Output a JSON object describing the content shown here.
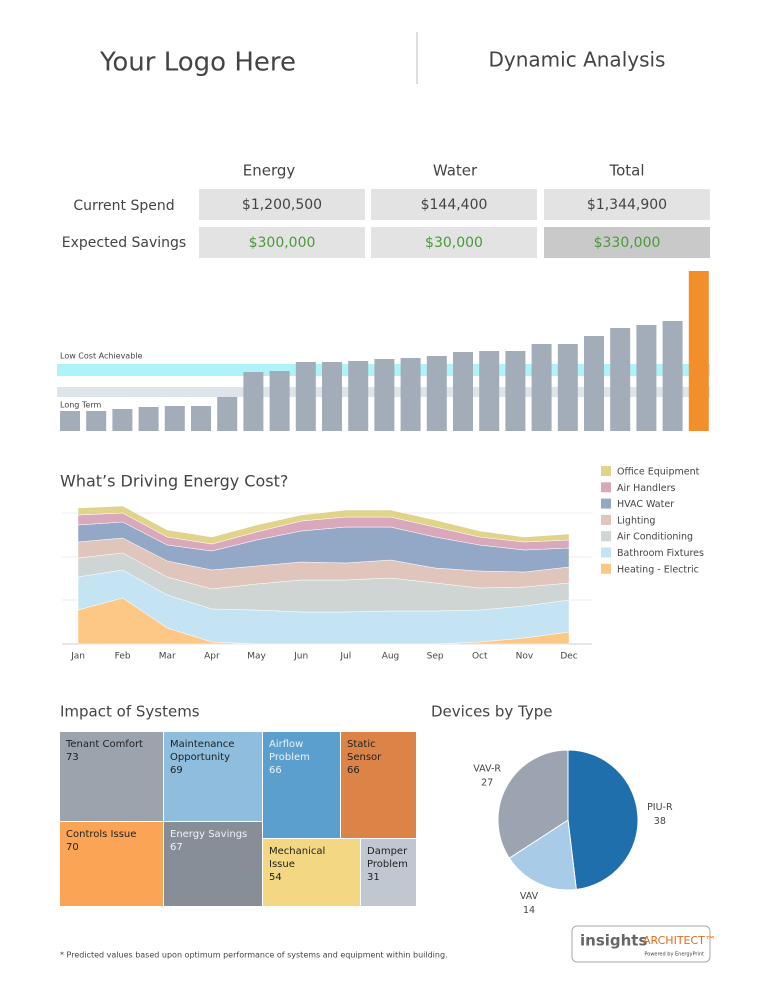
{
  "header": {
    "logo": "Your Logo Here",
    "title": "Dynamic Analysis"
  },
  "summary": {
    "columns": [
      "Energy",
      "Water",
      "Total"
    ],
    "rows": [
      {
        "label": "Current Spend",
        "cells": [
          "$1,200,500",
          "$144,400",
          "$1,344,900"
        ]
      },
      {
        "label": "Expected Savings",
        "cells": [
          "$300,000",
          "$30,000",
          "$330,000"
        ]
      }
    ]
  },
  "chart_data": [
    {
      "type": "bar",
      "values": [
        20,
        20,
        22,
        24,
        25,
        25,
        34,
        59,
        60,
        69,
        69,
        70,
        72,
        73,
        75,
        79,
        80,
        80,
        87,
        87,
        95,
        103,
        106,
        110,
        160
      ],
      "colors": [
        "#a3acb9",
        "#a3acb9",
        "#a3acb9",
        "#a3acb9",
        "#a3acb9",
        "#a3acb9",
        "#a3acb9",
        "#a3acb9",
        "#a3acb9",
        "#a3acb9",
        "#a3acb9",
        "#a3acb9",
        "#a3acb9",
        "#a3acb9",
        "#a3acb9",
        "#a3acb9",
        "#a3acb9",
        "#a3acb9",
        "#a3acb9",
        "#a3acb9",
        "#a3acb9",
        "#a3acb9",
        "#a3acb9",
        "#a3acb9",
        "#f28e2b"
      ],
      "ylim": [
        0,
        160
      ],
      "bands": [
        {
          "label": "Low Cost Achievable",
          "range": [
            55,
            67
          ],
          "color": "#aef3f7"
        },
        {
          "label": "Long Term",
          "range": [
            34,
            44
          ],
          "color": "#dde5ea"
        }
      ]
    },
    {
      "type": "area",
      "title": "What’s Driving Energy Cost?",
      "stacked": true,
      "categories": [
        "Jan",
        "Feb",
        "Mar",
        "Apr",
        "May",
        "Jun",
        "Jul",
        "Aug",
        "Sep",
        "Oct",
        "Nov",
        "Dec"
      ],
      "series": [
        {
          "name": "Office Equipment",
          "color": "#e0d38a",
          "values": [
            7,
            7,
            7,
            7,
            7,
            6,
            7,
            7,
            7,
            6,
            5,
            6
          ]
        },
        {
          "name": "Air Handlers",
          "color": "#d9a9bb",
          "values": [
            10,
            9,
            8,
            7,
            8,
            10,
            10,
            10,
            10,
            8,
            8,
            8
          ]
        },
        {
          "name": "HVAC Water",
          "color": "#93a7c6",
          "values": [
            17,
            16,
            16,
            19,
            26,
            31,
            36,
            33,
            31,
            26,
            22,
            19
          ]
        },
        {
          "name": "Lighting",
          "color": "#dfc5bc",
          "values": [
            16,
            15,
            16,
            19,
            18,
            18,
            17,
            18,
            15,
            17,
            15,
            16
          ]
        },
        {
          "name": "Air Conditioning",
          "color": "#cfd5d2",
          "values": [
            19,
            17,
            18,
            20,
            26,
            32,
            32,
            33,
            28,
            22,
            19,
            17
          ]
        },
        {
          "name": "Bathroom Fixtures",
          "color": "#c5e4f3",
          "values": [
            33,
            28,
            33,
            33,
            34,
            32,
            32,
            33,
            33,
            32,
            32,
            32
          ]
        },
        {
          "name": "Heating - Electric",
          "color": "#fdc886",
          "values": [
            34,
            46,
            16,
            2,
            0,
            0,
            0,
            0,
            0,
            2,
            6,
            12
          ]
        }
      ],
      "ylim": [
        0,
        140
      ],
      "yticks": [
        0,
        44,
        87,
        131
      ],
      "grid": true
    },
    {
      "type": "treemap",
      "title": "Impact of Systems",
      "items": [
        {
          "label": "Tenant Comfort",
          "value": 73,
          "color": "#9ba3ad"
        },
        {
          "label": "Maintenance Opportunity",
          "value": 69,
          "color": "#8fbddd"
        },
        {
          "label": "Airflow Problem",
          "value": 66,
          "color": "#5a9fcd"
        },
        {
          "label": "Static Sensor",
          "value": 66,
          "color": "#dc8447"
        },
        {
          "label": "Controls Issue",
          "value": 70,
          "color": "#fca456"
        },
        {
          "label": "Energy Savings",
          "value": 67,
          "color": "#878e97"
        },
        {
          "label": "Mechanical Issue",
          "value": 54,
          "color": "#f3d782"
        },
        {
          "label": "Damper Problem",
          "value": 31,
          "color": "#c1c7d1"
        }
      ]
    },
    {
      "type": "pie",
      "title": "Devices by Type",
      "categories": [
        "PIU-R",
        "VAV",
        "VAV-R"
      ],
      "values": [
        38,
        14,
        27
      ],
      "colors": [
        "#1f6fad",
        "#a8cbe8",
        "#9ba4b0"
      ]
    }
  ],
  "footnote": "* Predicted values based upon optimum performance of systems and equipment within building.",
  "brand": {
    "name": "insights",
    "suffix": "ARCHITECT™",
    "tagline": "Powered by EnergyPrint"
  }
}
